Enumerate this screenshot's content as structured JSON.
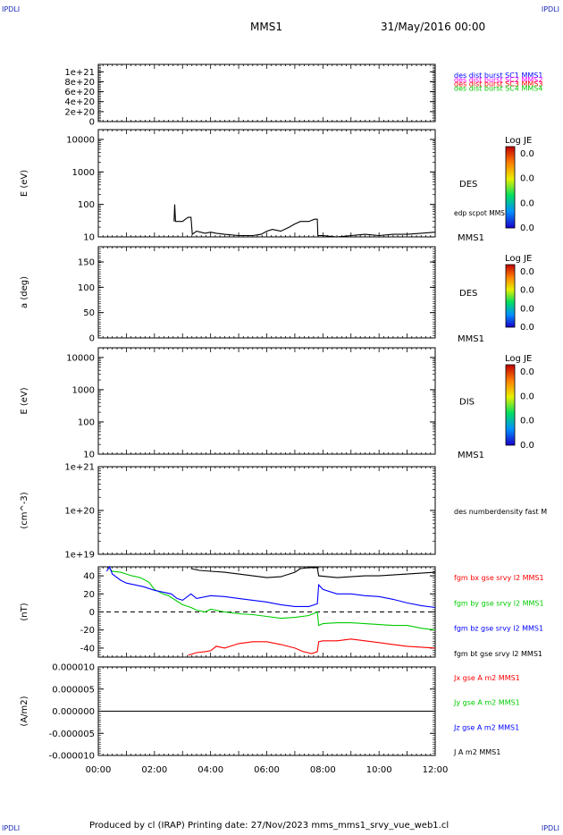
{
  "corners": [
    "IPDLI",
    "IPDLI",
    "IPDLI",
    "IPDLI"
  ],
  "header": {
    "spacecraft": "MMS1",
    "datetime": "31/May/2016 00:00"
  },
  "footer": "Produced by cl (IRAP)   Printing date: 27/Nov/2023   mms_mms1_srvy_vue_web1.cl",
  "colors": {
    "mms1": "#0000ff",
    "mms2": "#ff00ff",
    "mms3": "#ff0000",
    "mms4": "#00cc00",
    "axis": "#000000"
  },
  "chart_data": [
    {
      "id": "p1",
      "type": "line",
      "yticks": [
        "1e+21",
        "8e+20",
        "6e+20",
        "4e+20",
        "2e+20",
        "0"
      ],
      "ylim": [
        0,
        1.15e+21
      ],
      "legend": [
        {
          "text": "des dist burst SC1 MMS1",
          "color": "#0000ff"
        },
        {
          "text": "des dist burst SC2 MMS2",
          "color": "#ff00ff"
        },
        {
          "text": "des dist burst SC3 MMS3",
          "color": "#ff0000"
        },
        {
          "text": "des dist burst SC4 MMS4",
          "color": "#00cc00"
        }
      ],
      "series": []
    },
    {
      "id": "p2",
      "type": "heatmap",
      "ylabel": "E (eV)",
      "yscale": "log",
      "ylim": [
        10,
        20000
      ],
      "yticks": [
        "10000",
        "1000",
        "100",
        "10"
      ],
      "label": "DES",
      "sublabel": "edp scpot MMS1",
      "footlabel": "MMS1",
      "colorbar": {
        "title": "Log JE",
        "ticks": [
          "0.0",
          "0.0",
          "0.0",
          "0.0"
        ]
      },
      "overlay_line": {
        "x": [
          2.7,
          2.72,
          2.75,
          3.0,
          3.1,
          3.2,
          3.3,
          3.35,
          3.5,
          3.8,
          4.0,
          4.2,
          4.5,
          5.0,
          5.5,
          5.8,
          6.0,
          6.2,
          6.5,
          6.8,
          7.0,
          7.2,
          7.5,
          7.7,
          7.8,
          7.82,
          8.0,
          8.5,
          9.0,
          9.5,
          10.0,
          10.5,
          11.0,
          11.5,
          12.0
        ],
        "y": [
          30,
          100,
          30,
          30,
          35,
          40,
          40,
          12,
          15,
          13,
          14,
          13,
          12,
          11,
          11,
          12,
          15,
          17,
          15,
          20,
          25,
          30,
          30,
          35,
          35,
          11,
          11,
          10,
          11,
          12,
          11,
          12,
          12,
          13,
          14
        ]
      }
    },
    {
      "id": "p3",
      "type": "heatmap",
      "ylabel": "a (deg)",
      "ylim": [
        0,
        180
      ],
      "yticks": [
        "150",
        "100",
        "50",
        "0"
      ],
      "label": "DES",
      "footlabel": "MMS1",
      "colorbar": {
        "title": "Log JE",
        "ticks": [
          "0.0",
          "0.0",
          "0.0",
          "0.0"
        ]
      }
    },
    {
      "id": "p4",
      "type": "heatmap",
      "ylabel": "E (eV)",
      "yscale": "log",
      "ylim": [
        10,
        20000
      ],
      "yticks": [
        "10000",
        "1000",
        "100",
        "10"
      ],
      "label": "DIS",
      "footlabel": "MMS1",
      "colorbar": {
        "title": "Log JE",
        "ticks": [
          "0.0",
          "0.0",
          "0.0",
          "0.0"
        ]
      }
    },
    {
      "id": "p5",
      "type": "line",
      "ylabel": "(cm^-3)",
      "yscale": "log",
      "ylim": [
        1e+19,
        1e+21
      ],
      "yticks": [
        "1e+21",
        "1e+20",
        "1e+19"
      ],
      "legend": [
        {
          "text": "des numberdensity fast M",
          "color": "#000000"
        }
      ],
      "series": []
    },
    {
      "id": "p6",
      "type": "line",
      "ylabel": "(nT)",
      "ylim": [
        -50,
        50
      ],
      "yticks": [
        "40",
        "20",
        "0",
        "-20",
        "-40"
      ],
      "legend": [
        {
          "text": "fgm bx gse srvy l2 MMS1",
          "color": "#ff0000"
        },
        {
          "text": "fgm by gse srvy l2 MMS1",
          "color": "#00cc00"
        },
        {
          "text": "fgm bz gse srvy l2 MMS1",
          "color": "#0000ff"
        },
        {
          "text": "fgm bt gse srvy l2 MMS1",
          "color": "#000000"
        }
      ],
      "series": [
        {
          "color": "#000000",
          "x": [
            3.3,
            3.6,
            4.0,
            4.5,
            5.0,
            5.5,
            6.0,
            6.5,
            7.0,
            7.2,
            7.5,
            7.8,
            7.85,
            8.5,
            9.0,
            9.5,
            10.0,
            10.5,
            11.0,
            11.5,
            12.0
          ],
          "y": [
            48,
            46,
            45,
            44,
            42,
            40,
            38,
            39,
            44,
            48,
            49,
            49,
            40,
            38,
            39,
            40,
            40,
            41,
            42,
            43,
            44
          ]
        },
        {
          "color": "#00cc00",
          "x": [
            0.4,
            0.5,
            0.8,
            1.0,
            1.2,
            1.5,
            1.8,
            2.0,
            2.3,
            2.5,
            2.8,
            3.0,
            3.3,
            3.5,
            3.8,
            4.0,
            4.5,
            5.0,
            5.5,
            6.0,
            6.5,
            7.0,
            7.5,
            7.8,
            7.85,
            8.0,
            8.5,
            9.0,
            9.5,
            10.0,
            10.5,
            11.0,
            11.5,
            12.0
          ],
          "y": [
            48,
            45,
            44,
            42,
            40,
            38,
            33,
            25,
            20,
            18,
            12,
            8,
            5,
            2,
            0,
            3,
            0,
            -2,
            -3,
            -5,
            -7,
            -6,
            -4,
            0,
            -15,
            -13,
            -12,
            -12,
            -13,
            -14,
            -15,
            -15,
            -18,
            -20
          ]
        },
        {
          "color": "#0000ff",
          "x": [
            0.3,
            0.4,
            0.5,
            0.8,
            1.0,
            1.3,
            1.6,
            2.0,
            2.3,
            2.6,
            2.8,
            3.0,
            3.3,
            3.5,
            4.0,
            4.5,
            5.0,
            5.5,
            6.0,
            6.5,
            7.0,
            7.5,
            7.8,
            7.85,
            8.0,
            8.5,
            9.0,
            9.5,
            10.0,
            10.5,
            11.0,
            11.5,
            12.0
          ],
          "y": [
            45,
            50,
            42,
            35,
            32,
            30,
            28,
            24,
            22,
            20,
            15,
            13,
            20,
            15,
            18,
            17,
            15,
            13,
            11,
            8,
            6,
            6,
            9,
            30,
            25,
            20,
            20,
            18,
            17,
            14,
            10,
            7,
            5
          ]
        },
        {
          "color": "#ff0000",
          "x": [
            3.2,
            3.5,
            3.8,
            4.0,
            4.2,
            4.5,
            5.0,
            5.5,
            6.0,
            6.5,
            7.0,
            7.3,
            7.6,
            7.8,
            7.85,
            8.0,
            8.5,
            9.0,
            9.5,
            10.0,
            10.5,
            11.0,
            11.5,
            12.0
          ],
          "y": [
            -48,
            -45,
            -44,
            -43,
            -38,
            -40,
            -35,
            -33,
            -33,
            -36,
            -40,
            -44,
            -46,
            -44,
            -33,
            -32,
            -32,
            -30,
            -32,
            -34,
            -36,
            -38,
            -39,
            -40
          ]
        }
      ]
    },
    {
      "id": "p7",
      "type": "line",
      "ylabel": "(A/m2)",
      "ylim": [
        -1e-05,
        1e-05
      ],
      "yticks": [
        "0.000010",
        "0.000005",
        "0.000000",
        "-0.000005",
        "-0.000010"
      ],
      "legend": [
        {
          "text": "Jx gse A m2 MMS1",
          "color": "#ff0000"
        },
        {
          "text": "Jy gse A m2 MMS1",
          "color": "#00cc00"
        },
        {
          "text": "Jz gse A m2 MMS1",
          "color": "#0000ff"
        },
        {
          "text": "J A m2 MMS1",
          "color": "#000000"
        }
      ],
      "series": [
        {
          "color": "#000000",
          "x": [
            0,
            2,
            4,
            6,
            8,
            10,
            12
          ],
          "y": [
            0,
            0,
            0,
            0,
            0,
            0,
            0
          ]
        }
      ]
    }
  ],
  "xaxis": {
    "ticks": [
      "00:00",
      "02:00",
      "04:00",
      "06:00",
      "08:00",
      "10:00",
      "12:00"
    ],
    "range": [
      0,
      12
    ]
  }
}
